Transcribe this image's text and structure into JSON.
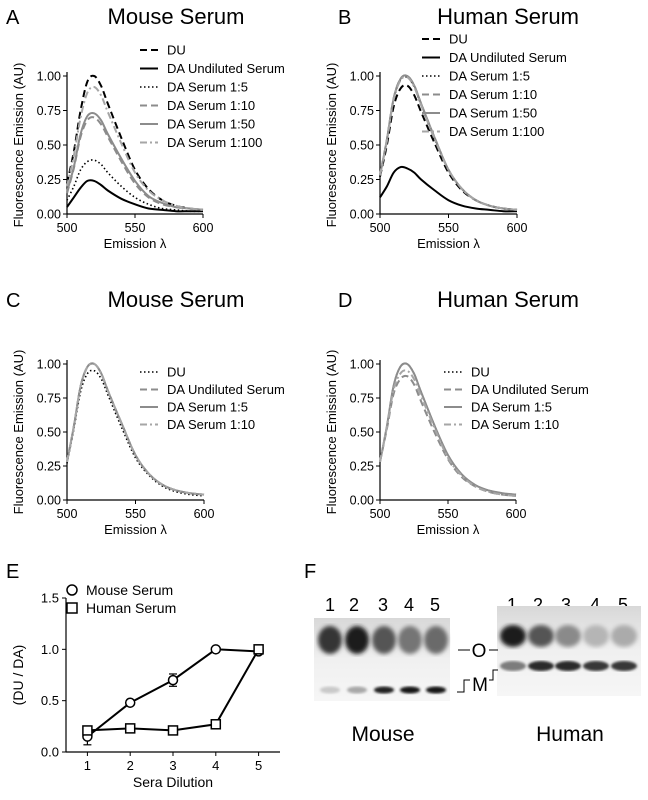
{
  "panels": [
    {
      "letter": "A",
      "title": "Mouse Serum"
    },
    {
      "letter": "B",
      "title": "Human Serum"
    },
    {
      "letter": "C",
      "title": "Mouse Serum"
    },
    {
      "letter": "D",
      "title": "Human Serum"
    },
    {
      "letter": "E",
      "title": ""
    },
    {
      "letter": "F",
      "title": ""
    }
  ],
  "chart_data": [
    {
      "type": "line",
      "panel": "A",
      "title": "Mouse Serum",
      "xlabel": "Emission λ",
      "ylabel": "Fluorescence Emission (AU)",
      "xlim": [
        500,
        600
      ],
      "ylim": [
        0,
        1.0
      ],
      "xticks": [
        "500",
        "550",
        "600"
      ],
      "yticks": [
        "0.00",
        "0.25",
        "0.50",
        "0.75",
        "1.00"
      ],
      "legend": "top-right",
      "x": [
        500,
        505,
        510,
        515,
        520,
        525,
        530,
        540,
        550,
        560,
        570,
        580,
        590,
        600
      ],
      "series": [
        {
          "name": "DU",
          "style": "dash-black",
          "values": [
            0.22,
            0.45,
            0.75,
            0.96,
            1.0,
            0.93,
            0.8,
            0.55,
            0.32,
            0.18,
            0.1,
            0.06,
            0.04,
            0.03
          ]
        },
        {
          "name": "DA Undiluted Serum",
          "style": "solid-black",
          "values": [
            0.05,
            0.12,
            0.19,
            0.24,
            0.24,
            0.21,
            0.17,
            0.11,
            0.07,
            0.04,
            0.03,
            0.02,
            0.02,
            0.02
          ]
        },
        {
          "name": "DA Serum 1:5",
          "style": "dot-black",
          "values": [
            0.1,
            0.2,
            0.32,
            0.38,
            0.39,
            0.36,
            0.3,
            0.2,
            0.12,
            0.07,
            0.04,
            0.03,
            0.02,
            0.02
          ]
        },
        {
          "name": "DA Serum 1:10",
          "style": "dash-gray",
          "values": [
            0.15,
            0.33,
            0.56,
            0.68,
            0.7,
            0.65,
            0.56,
            0.38,
            0.22,
            0.12,
            0.07,
            0.05,
            0.04,
            0.03
          ]
        },
        {
          "name": "DA Serum 1:50",
          "style": "solid-gray",
          "values": [
            0.16,
            0.34,
            0.58,
            0.71,
            0.73,
            0.68,
            0.58,
            0.4,
            0.24,
            0.13,
            0.08,
            0.05,
            0.04,
            0.03
          ]
        },
        {
          "name": "DA Serum 1:100",
          "style": "dashdot-gray",
          "values": [
            0.2,
            0.42,
            0.7,
            0.88,
            0.92,
            0.86,
            0.74,
            0.51,
            0.3,
            0.17,
            0.1,
            0.06,
            0.04,
            0.03
          ]
        }
      ]
    },
    {
      "type": "line",
      "panel": "B",
      "title": "Human Serum",
      "xlabel": "Emission λ",
      "ylabel": "Fluorescence Emission (AU)",
      "xlim": [
        500,
        600
      ],
      "ylim": [
        0,
        1.0
      ],
      "xticks": [
        "500",
        "550",
        "600"
      ],
      "yticks": [
        "0.00",
        "0.25",
        "0.50",
        "0.75",
        "1.00"
      ],
      "legend": "top-right",
      "x": [
        500,
        505,
        510,
        515,
        520,
        525,
        530,
        540,
        550,
        560,
        570,
        580,
        590,
        600
      ],
      "series": [
        {
          "name": "DU",
          "style": "dash-black",
          "values": [
            0.27,
            0.5,
            0.78,
            0.91,
            0.93,
            0.86,
            0.74,
            0.51,
            0.3,
            0.17,
            0.1,
            0.06,
            0.04,
            0.03
          ]
        },
        {
          "name": "DA Undiluted Serum",
          "style": "solid-black",
          "values": [
            0.12,
            0.2,
            0.3,
            0.34,
            0.33,
            0.3,
            0.25,
            0.17,
            0.1,
            0.06,
            0.04,
            0.03,
            0.02,
            0.02
          ]
        },
        {
          "name": "DA Serum 1:5",
          "style": "dot-black",
          "values": [
            0.28,
            0.53,
            0.83,
            0.97,
            0.99,
            0.92,
            0.79,
            0.54,
            0.32,
            0.18,
            0.1,
            0.06,
            0.04,
            0.03
          ]
        },
        {
          "name": "DA Serum 1:10",
          "style": "dash-gray",
          "values": [
            0.28,
            0.54,
            0.84,
            0.98,
            1.0,
            0.93,
            0.8,
            0.55,
            0.32,
            0.18,
            0.1,
            0.06,
            0.04,
            0.03
          ]
        },
        {
          "name": "DA Serum 1:50",
          "style": "solid-gray",
          "values": [
            0.28,
            0.54,
            0.84,
            0.98,
            1.0,
            0.93,
            0.8,
            0.55,
            0.32,
            0.18,
            0.1,
            0.06,
            0.04,
            0.03
          ]
        },
        {
          "name": "DA Serum 1:100",
          "style": "dashdot-gray",
          "values": [
            0.28,
            0.53,
            0.83,
            0.97,
            0.99,
            0.92,
            0.79,
            0.54,
            0.32,
            0.18,
            0.1,
            0.06,
            0.04,
            0.03
          ]
        }
      ]
    },
    {
      "type": "line",
      "panel": "C",
      "title": "Mouse Serum",
      "xlabel": "Emission λ",
      "ylabel": "Fluorescence Emission (AU)",
      "xlim": [
        500,
        600
      ],
      "ylim": [
        0,
        1.0
      ],
      "xticks": [
        "500",
        "550",
        "600"
      ],
      "yticks": [
        "0.00",
        "0.25",
        "0.50",
        "0.75",
        "1.00"
      ],
      "legend": "right",
      "x": [
        500,
        505,
        510,
        515,
        520,
        525,
        530,
        540,
        550,
        560,
        570,
        580,
        590,
        600
      ],
      "series": [
        {
          "name": "DU",
          "style": "dot-black",
          "values": [
            0.27,
            0.52,
            0.8,
            0.93,
            0.95,
            0.89,
            0.77,
            0.53,
            0.31,
            0.18,
            0.1,
            0.06,
            0.04,
            0.03
          ]
        },
        {
          "name": "DA Undiluted Serum",
          "style": "dash-gray",
          "values": [
            0.28,
            0.54,
            0.84,
            0.98,
            1.0,
            0.93,
            0.8,
            0.56,
            0.33,
            0.19,
            0.11,
            0.07,
            0.05,
            0.04
          ]
        },
        {
          "name": "DA Serum 1:5",
          "style": "solid-gray",
          "values": [
            0.28,
            0.54,
            0.84,
            0.98,
            1.0,
            0.93,
            0.8,
            0.56,
            0.33,
            0.19,
            0.11,
            0.07,
            0.05,
            0.04
          ]
        },
        {
          "name": "DA Serum 1:10",
          "style": "dashdot-gray",
          "values": [
            0.28,
            0.54,
            0.84,
            0.98,
            1.0,
            0.93,
            0.8,
            0.56,
            0.33,
            0.19,
            0.11,
            0.07,
            0.05,
            0.04
          ]
        }
      ]
    },
    {
      "type": "line",
      "panel": "D",
      "title": "Human Serum",
      "xlabel": "Emission λ",
      "ylabel": "Fluorescence Emission (AU)",
      "xlim": [
        500,
        600
      ],
      "ylim": [
        0,
        1.0
      ],
      "xticks": [
        "500",
        "550",
        "600"
      ],
      "yticks": [
        "0.00",
        "0.25",
        "0.50",
        "0.75",
        "1.00"
      ],
      "legend": "right",
      "x": [
        500,
        505,
        510,
        515,
        520,
        525,
        530,
        540,
        550,
        560,
        570,
        580,
        590,
        600
      ],
      "series": [
        {
          "name": "DU",
          "style": "dot-black",
          "values": [
            0.28,
            0.54,
            0.84,
            0.98,
            1.0,
            0.93,
            0.8,
            0.55,
            0.33,
            0.19,
            0.11,
            0.07,
            0.05,
            0.04
          ]
        },
        {
          "name": "DA Undiluted Serum",
          "style": "dash-gray",
          "values": [
            0.28,
            0.52,
            0.78,
            0.89,
            0.91,
            0.85,
            0.73,
            0.5,
            0.3,
            0.17,
            0.1,
            0.06,
            0.04,
            0.03
          ]
        },
        {
          "name": "DA Serum 1:5",
          "style": "solid-gray",
          "values": [
            0.28,
            0.54,
            0.84,
            0.98,
            1.0,
            0.93,
            0.8,
            0.55,
            0.33,
            0.19,
            0.11,
            0.07,
            0.05,
            0.04
          ]
        },
        {
          "name": "DA Serum 1:10",
          "style": "dashdot-gray",
          "values": [
            0.28,
            0.53,
            0.81,
            0.93,
            0.95,
            0.89,
            0.77,
            0.53,
            0.31,
            0.18,
            0.1,
            0.06,
            0.04,
            0.03
          ]
        }
      ]
    },
    {
      "type": "line",
      "panel": "E",
      "title": "",
      "xlabel": "Sera Dilution",
      "ylabel": "(DU / DA)",
      "xlim": [
        0.5,
        5.5
      ],
      "ylim": [
        0,
        1.5
      ],
      "xticks": [
        "1",
        "2",
        "3",
        "4",
        "5"
      ],
      "yticks": [
        "0.0",
        "0.5",
        "1.0",
        "1.5"
      ],
      "legend": "top-left",
      "x": [
        1,
        2,
        3,
        4,
        5
      ],
      "series": [
        {
          "name": "Mouse Serum",
          "marker": "circle",
          "values": [
            0.15,
            0.48,
            0.7,
            1.0,
            0.98
          ],
          "errors": [
            0.08,
            0.02,
            0.06,
            0.01,
            0.02
          ]
        },
        {
          "name": "Human Serum",
          "marker": "square",
          "values": [
            0.21,
            0.23,
            0.21,
            0.27,
            1.0
          ],
          "errors": [
            0.02,
            0.01,
            0.01,
            0.01,
            0.01
          ]
        }
      ]
    }
  ],
  "gel": {
    "mouse": {
      "lanes": [
        "1",
        "2",
        "3",
        "4",
        "5"
      ],
      "caption": "Mouse"
    },
    "human": {
      "lanes": [
        "1",
        "2",
        "3",
        "4",
        "5"
      ],
      "caption": "Human"
    },
    "band_labels": {
      "upper": "O",
      "lower": "M"
    },
    "mouse_upper_band_intensity": [
      0.85,
      0.95,
      0.7,
      0.55,
      0.6
    ],
    "mouse_lower_band_intensity": [
      0.15,
      0.3,
      0.9,
      0.95,
      0.95
    ],
    "human_upper_band_intensity": [
      0.95,
      0.7,
      0.45,
      0.25,
      0.3
    ],
    "human_lower_band_intensity": [
      0.5,
      0.85,
      0.85,
      0.8,
      0.8
    ]
  }
}
